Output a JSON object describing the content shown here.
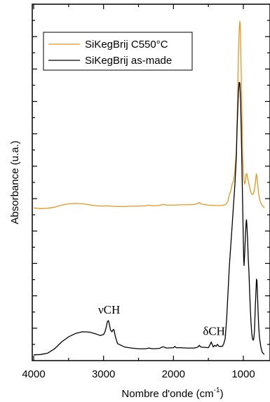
{
  "chart_data": {
    "type": "line",
    "xlabel": "Nombre d'onde (cm",
    "xlabel_sup": "-1",
    "xlabel_close": ")",
    "ylabel": "Absorbance (u.a.)",
    "x_reversed": true,
    "xlim": [
      4000,
      700
    ],
    "x_ticks": [
      4000,
      3000,
      2000,
      1000
    ],
    "x_tick_labels": [
      "4000",
      "3000",
      "2000",
      "1000"
    ],
    "ylim": [
      0,
      1.05
    ],
    "legend_position": "top-left",
    "series": [
      {
        "name": "SiKegBrij C550°C",
        "color": "#E8961E",
        "points": [
          [
            4000,
            0.45
          ],
          [
            3900,
            0.448
          ],
          [
            3800,
            0.449
          ],
          [
            3700,
            0.452
          ],
          [
            3600,
            0.458
          ],
          [
            3500,
            0.462
          ],
          [
            3400,
            0.463
          ],
          [
            3300,
            0.462
          ],
          [
            3200,
            0.459
          ],
          [
            3100,
            0.456
          ],
          [
            3000,
            0.455
          ],
          [
            2950,
            0.456
          ],
          [
            2900,
            0.455
          ],
          [
            2800,
            0.454
          ],
          [
            2700,
            0.454
          ],
          [
            2600,
            0.455
          ],
          [
            2500,
            0.455
          ],
          [
            2400,
            0.456
          ],
          [
            2350,
            0.458
          ],
          [
            2300,
            0.456
          ],
          [
            2200,
            0.457
          ],
          [
            2150,
            0.46
          ],
          [
            2100,
            0.458
          ],
          [
            2000,
            0.458
          ],
          [
            1900,
            0.459
          ],
          [
            1800,
            0.459
          ],
          [
            1700,
            0.46
          ],
          [
            1650,
            0.463
          ],
          [
            1630,
            0.466
          ],
          [
            1600,
            0.461
          ],
          [
            1500,
            0.458
          ],
          [
            1400,
            0.457
          ],
          [
            1300,
            0.457
          ],
          [
            1250,
            0.46
          ],
          [
            1220,
            0.47
          ],
          [
            1200,
            0.49
          ],
          [
            1180,
            0.5
          ],
          [
            1160,
            0.52
          ],
          [
            1140,
            0.53
          ],
          [
            1120,
            0.56
          ],
          [
            1100,
            0.62
          ],
          [
            1090,
            0.7
          ],
          [
            1080,
            0.8
          ],
          [
            1070,
            0.9
          ],
          [
            1060,
            0.97
          ],
          [
            1050,
            1.0
          ],
          [
            1045,
            0.99
          ],
          [
            1040,
            0.95
          ],
          [
            1030,
            0.85
          ],
          [
            1020,
            0.72
          ],
          [
            1010,
            0.6
          ],
          [
            1000,
            0.56
          ],
          [
            990,
            0.53
          ],
          [
            980,
            0.52
          ],
          [
            970,
            0.53
          ],
          [
            960,
            0.55
          ],
          [
            950,
            0.55
          ],
          [
            940,
            0.54
          ],
          [
            920,
            0.52
          ],
          [
            900,
            0.5
          ],
          [
            880,
            0.49
          ],
          [
            860,
            0.49
          ],
          [
            845,
            0.5
          ],
          [
            830,
            0.52
          ],
          [
            820,
            0.54
          ],
          [
            812,
            0.55
          ],
          [
            805,
            0.54
          ],
          [
            795,
            0.52
          ],
          [
            780,
            0.49
          ],
          [
            760,
            0.47
          ],
          [
            740,
            0.46
          ],
          [
            720,
            0.455
          ],
          [
            700,
            0.45
          ]
        ]
      },
      {
        "name": "SiKegBrij as-made",
        "color": "#000000",
        "points": [
          [
            4000,
            0.017
          ],
          [
            3900,
            0.018
          ],
          [
            3800,
            0.022
          ],
          [
            3700,
            0.035
          ],
          [
            3600,
            0.055
          ],
          [
            3500,
            0.07
          ],
          [
            3400,
            0.08
          ],
          [
            3300,
            0.085
          ],
          [
            3200,
            0.084
          ],
          [
            3100,
            0.078
          ],
          [
            3050,
            0.074
          ],
          [
            3000,
            0.077
          ],
          [
            2980,
            0.085
          ],
          [
            2960,
            0.1
          ],
          [
            2945,
            0.115
          ],
          [
            2930,
            0.118
          ],
          [
            2920,
            0.11
          ],
          [
            2900,
            0.09
          ],
          [
            2880,
            0.085
          ],
          [
            2860,
            0.092
          ],
          [
            2850,
            0.09
          ],
          [
            2830,
            0.07
          ],
          [
            2800,
            0.05
          ],
          [
            2700,
            0.04
          ],
          [
            2600,
            0.037
          ],
          [
            2500,
            0.035
          ],
          [
            2400,
            0.035
          ],
          [
            2350,
            0.037
          ],
          [
            2300,
            0.035
          ],
          [
            2200,
            0.036
          ],
          [
            2150,
            0.041
          ],
          [
            2100,
            0.037
          ],
          [
            2000,
            0.038
          ],
          [
            1980,
            0.042
          ],
          [
            1960,
            0.038
          ],
          [
            1900,
            0.038
          ],
          [
            1800,
            0.037
          ],
          [
            1700,
            0.037
          ],
          [
            1650,
            0.04
          ],
          [
            1630,
            0.045
          ],
          [
            1610,
            0.04
          ],
          [
            1500,
            0.038
          ],
          [
            1470,
            0.05
          ],
          [
            1460,
            0.055
          ],
          [
            1450,
            0.05
          ],
          [
            1430,
            0.04
          ],
          [
            1410,
            0.045
          ],
          [
            1390,
            0.042
          ],
          [
            1370,
            0.048
          ],
          [
            1350,
            0.042
          ],
          [
            1300,
            0.042
          ],
          [
            1280,
            0.05
          ],
          [
            1260,
            0.065
          ],
          [
            1240,
            0.12
          ],
          [
            1220,
            0.2
          ],
          [
            1200,
            0.28
          ],
          [
            1180,
            0.34
          ],
          [
            1160,
            0.4
          ],
          [
            1140,
            0.46
          ],
          [
            1120,
            0.52
          ],
          [
            1100,
            0.6
          ],
          [
            1090,
            0.68
          ],
          [
            1080,
            0.74
          ],
          [
            1070,
            0.79
          ],
          [
            1060,
            0.82
          ],
          [
            1050,
            0.818
          ],
          [
            1040,
            0.77
          ],
          [
            1030,
            0.68
          ],
          [
            1020,
            0.57
          ],
          [
            1010,
            0.46
          ],
          [
            1000,
            0.35
          ],
          [
            995,
            0.3
          ],
          [
            990,
            0.28
          ],
          [
            980,
            0.32
          ],
          [
            970,
            0.37
          ],
          [
            960,
            0.41
          ],
          [
            955,
            0.415
          ],
          [
            950,
            0.4
          ],
          [
            940,
            0.36
          ],
          [
            930,
            0.3
          ],
          [
            920,
            0.26
          ],
          [
            910,
            0.2
          ],
          [
            900,
            0.15
          ],
          [
            890,
            0.11
          ],
          [
            880,
            0.08
          ],
          [
            870,
            0.065
          ],
          [
            860,
            0.06
          ],
          [
            850,
            0.065
          ],
          [
            840,
            0.09
          ],
          [
            830,
            0.15
          ],
          [
            820,
            0.2
          ],
          [
            812,
            0.24
          ],
          [
            805,
            0.235
          ],
          [
            800,
            0.21
          ],
          [
            790,
            0.15
          ],
          [
            780,
            0.1
          ],
          [
            770,
            0.07
          ],
          [
            750,
            0.04
          ],
          [
            730,
            0.025
          ],
          [
            710,
            0.02
          ],
          [
            700,
            0.018
          ]
        ]
      }
    ],
    "annotations": [
      {
        "text": "νCH",
        "x": 2920,
        "y": 0.118,
        "anchor": "middle"
      },
      {
        "text": "δCH",
        "x": 1420,
        "y": 0.055,
        "anchor": "middle"
      }
    ]
  }
}
